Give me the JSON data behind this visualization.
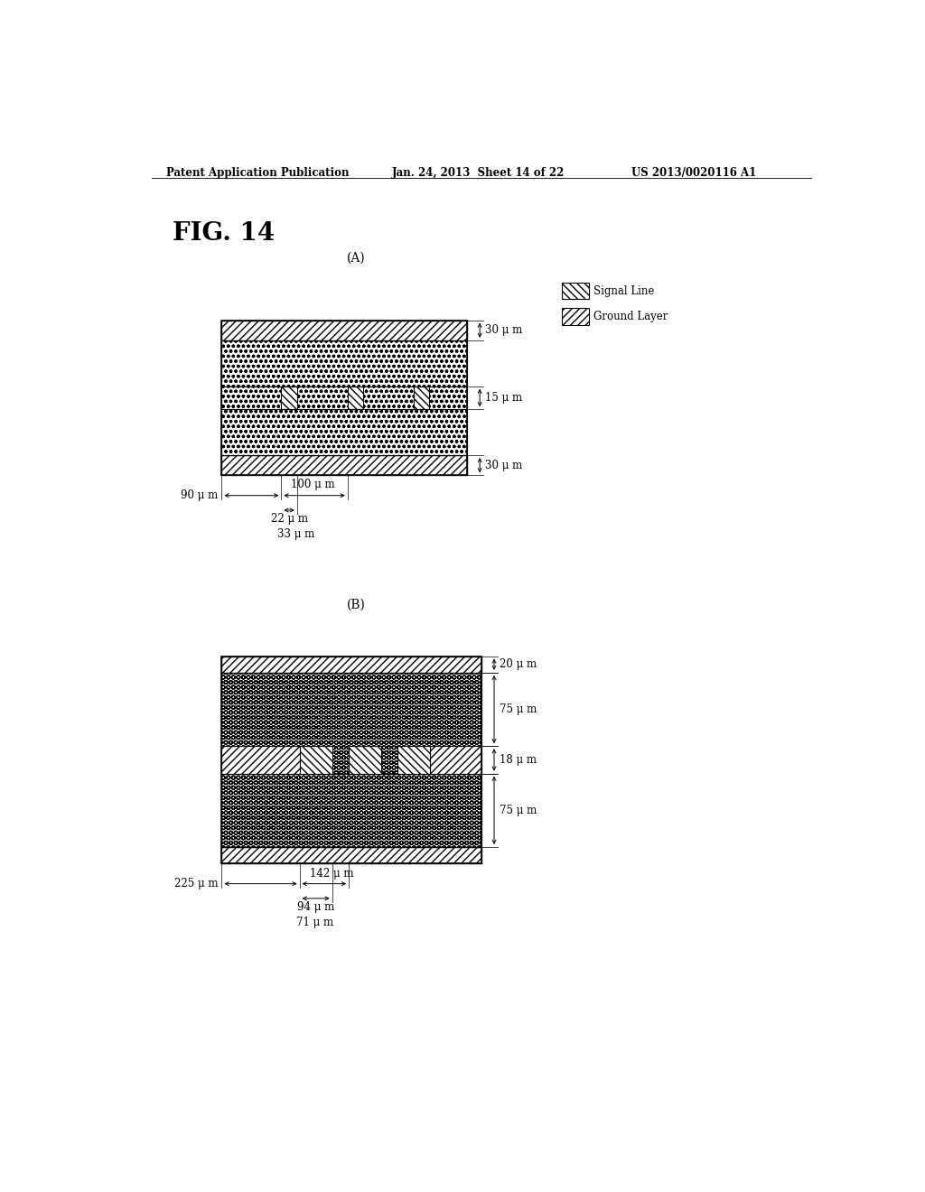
{
  "title": "FIG. 14",
  "header_left": "Patent Application Publication",
  "header_mid": "Jan. 24, 2013  Sheet 14 of 22",
  "header_right": "US 2013/0020116 A1",
  "background_color": "#ffffff",
  "legend_signal_label": "Signal Line",
  "legend_ground_label": "Ground Layer",
  "fig_label_A": "(A)",
  "fig_label_B": "(B)"
}
